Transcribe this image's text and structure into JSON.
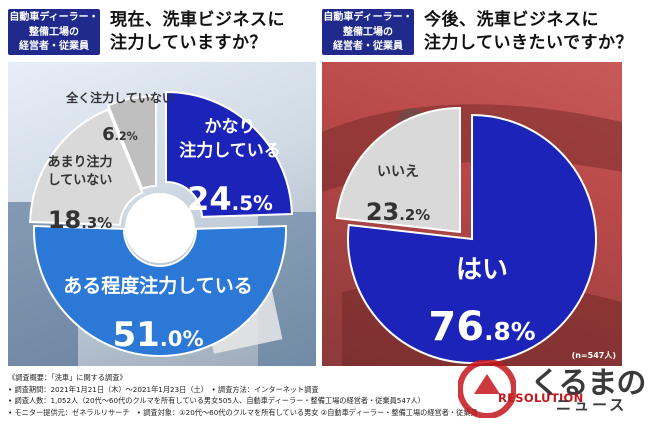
{
  "header": {
    "left_tag": "自動車ディーラー・\n整備工場の\n経営者・従業員",
    "left_question": "現在、洗車ビジネスに\n注力していますか？",
    "right_tag": "自動車ディーラー・\n整備工場の\n経営者・従業員",
    "right_question": "今後、洗車ビジネスに\n注力していきたいですか？"
  },
  "chart_data": [
    {
      "type": "pie",
      "subtype": "donut",
      "slices": [
        {
          "label": "かなり注力している",
          "line1": "かなり",
          "line2": "注力している",
          "value": 24.5,
          "value_text": "24.5%",
          "color": "#1c23b8"
        },
        {
          "label": "ある程度注力している",
          "line1": "ある程度注力している",
          "value": 51.0,
          "value_text": "51.0%",
          "color": "#2c78d6"
        },
        {
          "label": "あまり注力していない",
          "line1": "あまり注力",
          "line2": "していない",
          "value": 18.3,
          "value_text": "18.3%",
          "color": "#d9d9d9"
        },
        {
          "label": "全く注力していない",
          "line1": "全く注力していない",
          "value": 6.2,
          "value_text": "6.2%",
          "color": "#bfbfbf"
        }
      ]
    },
    {
      "type": "pie",
      "note": "(n=547人)",
      "slices": [
        {
          "label": "はい",
          "line1": "はい",
          "value": 76.8,
          "value_text": "76.8%",
          "color": "#1c23b8"
        },
        {
          "label": "いいえ",
          "line1": "いいえ",
          "value": 23.2,
          "value_text": "23.2%",
          "color": "#d9d9d9"
        }
      ]
    }
  ],
  "footer": {
    "line1": "《調査概要：「洗車」に関する調査》",
    "line2": "• 調査期間：2021年1月21日（木）～2021年1月23日（土）　• 調査方法：インターネット調査",
    "line3": "• 調査人数：1,052人（20代～60代のクルマを所有している男女505人、自動車ディーラー・整備工場の経営者・従業員547人）",
    "line4": "• モニター提供元：ゼネラルリサーチ　• 調査対象：①20代～60代のクルマを所有している男女 ②自動車ディーラー・整備工場の経営者・従業員"
  },
  "branding": {
    "resolution": "RESOLUTION",
    "kurumano": "くるまの",
    "news": "ニュース"
  },
  "colors": {
    "navy": "#1f2a8c",
    "blue": "#1c23b8",
    "mid_blue": "#2c78d6",
    "light_gray": "#d9d9d9",
    "mid_gray": "#bfbfbf",
    "red": "#c4161c"
  }
}
